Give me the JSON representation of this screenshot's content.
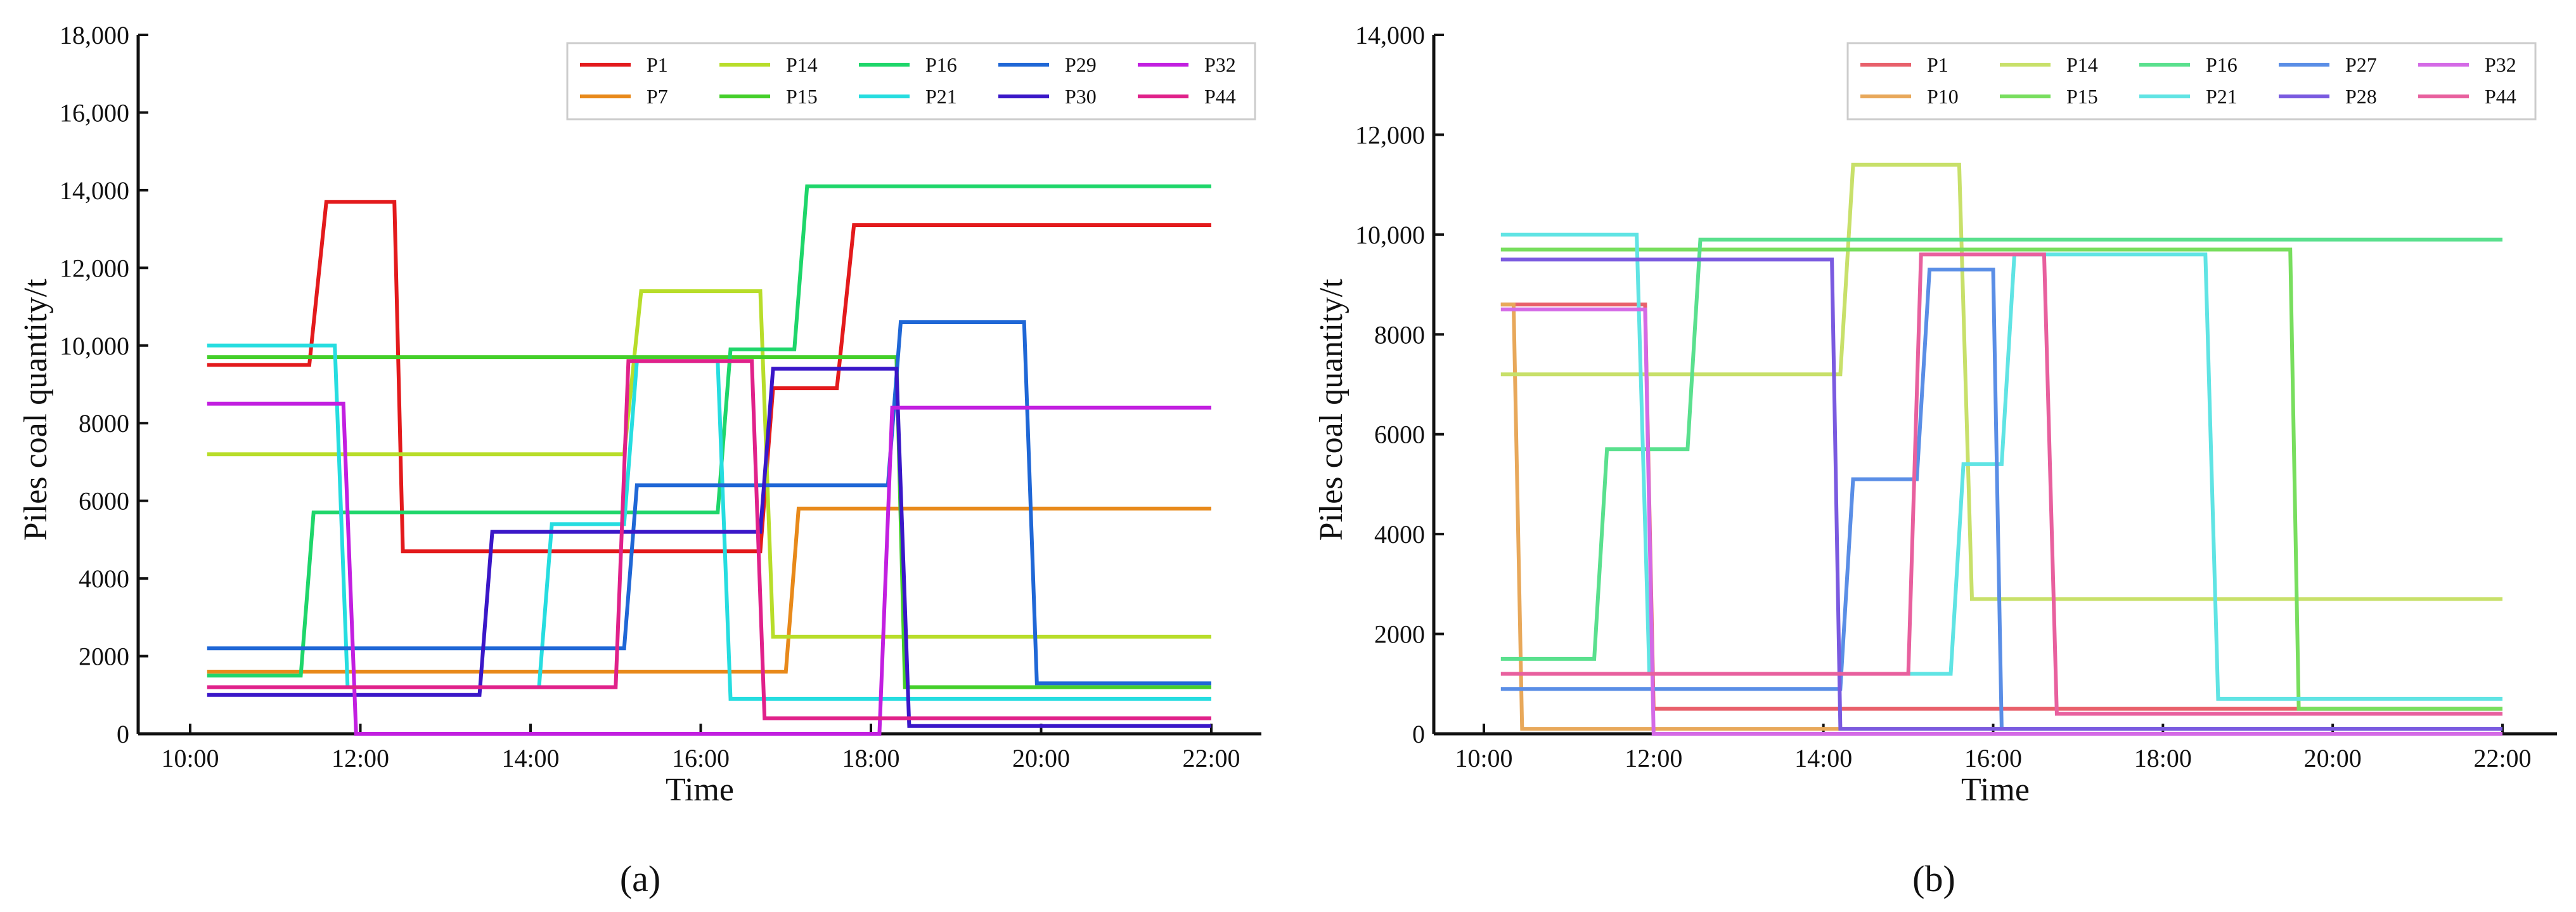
{
  "figure": {
    "panels": [
      "(a)",
      "(b)"
    ]
  },
  "chart_data": [
    {
      "type": "line",
      "panel_label": "(a)",
      "xlabel": "Time",
      "ylabel": "Piles coal quantity/t",
      "ylim": [
        0,
        18000
      ],
      "xlim": [
        10,
        22
      ],
      "x_ticks": [
        10,
        12,
        14,
        16,
        18,
        20,
        22
      ],
      "x_tick_labels": [
        "10:00",
        "12:00",
        "14:00",
        "16:00",
        "18:00",
        "20:00",
        "22:00"
      ],
      "y_ticks": [
        0,
        2000,
        4000,
        6000,
        8000,
        10000,
        12000,
        14000,
        16000,
        18000
      ],
      "y_tick_labels": [
        "0",
        "2000",
        "4000",
        "6000",
        "8000",
        "10,000",
        "12,000",
        "14,000",
        "16,000",
        "18,000"
      ],
      "legend": "top-right",
      "grid": false,
      "series": [
        {
          "name": "P1",
          "color": "#e31a1c",
          "x": [
            10.2,
            11.4,
            11.6,
            12.4,
            12.5,
            16.7,
            16.85,
            17.6,
            17.8,
            22
          ],
          "y": [
            9500,
            9500,
            13700,
            13700,
            4700,
            4700,
            8900,
            8900,
            13100,
            13100
          ]
        },
        {
          "name": "P7",
          "color": "#e8891a",
          "x": [
            10.2,
            17.0,
            17.15,
            22
          ],
          "y": [
            1600,
            1600,
            5800,
            5800
          ]
        },
        {
          "name": "P14",
          "color": "#b8dd2a",
          "x": [
            10.2,
            15.1,
            15.3,
            16.7,
            16.85,
            22
          ],
          "y": [
            7200,
            7200,
            11400,
            11400,
            2500,
            2500
          ]
        },
        {
          "name": "P15",
          "color": "#44cf2a",
          "x": [
            10.2,
            18.3,
            18.4,
            22
          ],
          "y": [
            9700,
            9700,
            1200,
            1200
          ]
        },
        {
          "name": "P16",
          "color": "#1ed66a",
          "x": [
            10.2,
            11.3,
            11.45,
            16.2,
            16.35,
            17.1,
            17.25,
            22
          ],
          "y": [
            1500,
            1500,
            5700,
            5700,
            9900,
            9900,
            14100,
            14100
          ]
        },
        {
          "name": "P21",
          "color": "#26dde0",
          "x": [
            10.2,
            11.7,
            11.85,
            14.1,
            14.25,
            15.1,
            15.25,
            16.2,
            16.35,
            22
          ],
          "y": [
            10000,
            10000,
            1200,
            1200,
            5400,
            5400,
            9600,
            9600,
            900,
            900
          ]
        },
        {
          "name": "P29",
          "color": "#1f67d6",
          "x": [
            10.2,
            15.1,
            15.25,
            17.2,
            17.35,
            18.2,
            18.35,
            19.8,
            19.95,
            22
          ],
          "y": [
            2200,
            2200,
            6400,
            6400,
            6400,
            6400,
            10600,
            10600,
            1300,
            1300
          ]
        },
        {
          "name": "P30",
          "color": "#3a17c8",
          "x": [
            10.2,
            13.4,
            13.55,
            16.7,
            16.85,
            18.3,
            18.45,
            22
          ],
          "y": [
            1000,
            1000,
            5200,
            5200,
            9400,
            9400,
            200,
            200
          ]
        },
        {
          "name": "P32",
          "color": "#c21fe0",
          "x": [
            10.2,
            11.8,
            11.95,
            18.1,
            18.25,
            22
          ],
          "y": [
            8500,
            8500,
            0,
            0,
            8400,
            8400
          ]
        },
        {
          "name": "P44",
          "color": "#e0218a",
          "x": [
            10.2,
            15.0,
            15.15,
            16.6,
            16.75,
            22
          ],
          "y": [
            1200,
            1200,
            9600,
            9600,
            400,
            400
          ]
        }
      ]
    },
    {
      "type": "line",
      "panel_label": "(b)",
      "xlabel": "Time",
      "ylabel": "Piles coal quantity/t",
      "ylim": [
        0,
        14000
      ],
      "xlim": [
        10,
        22
      ],
      "x_ticks": [
        10,
        12,
        14,
        16,
        18,
        20,
        22
      ],
      "x_tick_labels": [
        "10:00",
        "12:00",
        "14:00",
        "16:00",
        "18:00",
        "20:00",
        "22:00"
      ],
      "y_ticks": [
        0,
        2000,
        4000,
        6000,
        8000,
        10000,
        12000,
        14000
      ],
      "y_tick_labels": [
        "0",
        "2000",
        "4000",
        "6000",
        "8000",
        "10,000",
        "12,000",
        "14,000"
      ],
      "legend": "top-right",
      "grid": false,
      "series": [
        {
          "name": "P1",
          "color": "#e8606b",
          "x": [
            10.2,
            11.9,
            12.0,
            22
          ],
          "y": [
            8600,
            8600,
            500,
            500
          ]
        },
        {
          "name": "P10",
          "color": "#e8a85a",
          "x": [
            10.2,
            10.35,
            10.45,
            22
          ],
          "y": [
            8600,
            8600,
            100,
            100
          ]
        },
        {
          "name": "P14",
          "color": "#c8e06a",
          "x": [
            10.2,
            14.2,
            14.35,
            15.6,
            15.75,
            22
          ],
          "y": [
            7200,
            7200,
            11400,
            11400,
            2700,
            2700
          ]
        },
        {
          "name": "P15",
          "color": "#78de5e",
          "x": [
            10.2,
            19.5,
            19.6,
            22
          ],
          "y": [
            9700,
            9700,
            500,
            500
          ]
        },
        {
          "name": "P16",
          "color": "#5ae08e",
          "x": [
            10.2,
            11.3,
            11.45,
            12.4,
            12.55,
            22
          ],
          "y": [
            1500,
            1500,
            5700,
            5700,
            9900,
            9900
          ]
        },
        {
          "name": "P21",
          "color": "#60e4e4",
          "x": [
            10.2,
            11.8,
            11.95,
            15.5,
            15.65,
            16.1,
            16.25,
            18.5,
            18.65,
            22
          ],
          "y": [
            10000,
            10000,
            1200,
            1200,
            5400,
            5400,
            9600,
            9600,
            700,
            700
          ]
        },
        {
          "name": "P27",
          "color": "#5a8ee6",
          "x": [
            10.2,
            14.2,
            14.35,
            15.1,
            15.25,
            16.0,
            16.1,
            22
          ],
          "y": [
            900,
            900,
            5100,
            5100,
            9300,
            9300,
            100,
            100
          ]
        },
        {
          "name": "P28",
          "color": "#7a5ae0",
          "x": [
            10.2,
            14.1,
            14.2,
            22
          ],
          "y": [
            9500,
            9500,
            100,
            100
          ]
        },
        {
          "name": "P32",
          "color": "#d46ae6",
          "x": [
            10.2,
            11.9,
            12.0,
            22
          ],
          "y": [
            8500,
            8500,
            0,
            0
          ]
        },
        {
          "name": "P44",
          "color": "#e8609e",
          "x": [
            10.2,
            15.0,
            15.15,
            16.6,
            16.75,
            22
          ],
          "y": [
            1200,
            1200,
            9600,
            9600,
            400,
            400
          ]
        }
      ]
    }
  ]
}
